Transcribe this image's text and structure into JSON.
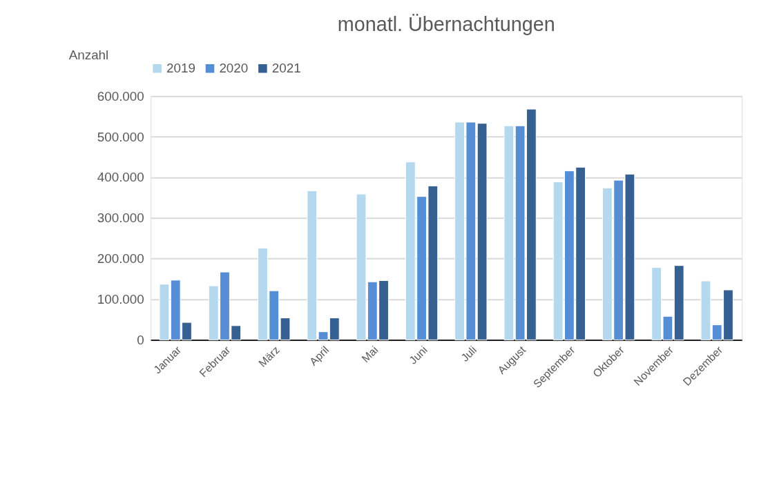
{
  "chart_data": {
    "type": "bar",
    "title": "monatl. Übernachtungen",
    "ylabel": "Anzahl",
    "categories": [
      "Januar",
      "Februar",
      "März",
      "April",
      "Mai",
      "Juni",
      "Juli",
      "August",
      "September",
      "Oktober",
      "November",
      "Dezember"
    ],
    "series": [
      {
        "name": "2019",
        "color": "#b4d8ee",
        "values": [
          137000,
          133000,
          226000,
          367000,
          359000,
          438000,
          536000,
          527000,
          389000,
          374000,
          178000,
          145000
        ]
      },
      {
        "name": "2020",
        "color": "#558ed5",
        "values": [
          147000,
          167000,
          121000,
          20000,
          143000,
          353000,
          536000,
          527000,
          416000,
          393000,
          58000,
          37000
        ]
      },
      {
        "name": "2021",
        "color": "#376092",
        "values": [
          43000,
          35000,
          54000,
          54000,
          146000,
          379000,
          533000,
          568000,
          425000,
          408000,
          183000,
          123000
        ]
      }
    ],
    "ylim": [
      0,
      600000
    ],
    "yticks": [
      0,
      {
        "value": 100000,
        "label": "100.000"
      },
      {
        "value": 200000,
        "label": "200.000"
      },
      {
        "value": 300000,
        "label": "300.000"
      },
      {
        "value": 400000,
        "label": "400.000"
      },
      {
        "value": 500000,
        "label": "500.000"
      },
      {
        "value": 600000,
        "label": "600.000"
      }
    ],
    "grid": "y",
    "legend": "top"
  }
}
